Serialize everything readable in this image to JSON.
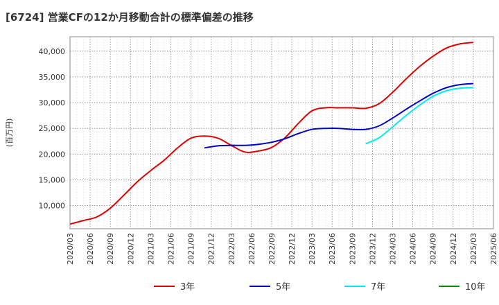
{
  "title": "[6724]  営業CFの12か月移動合計の標準偏差の推移",
  "chart_data": {
    "type": "line",
    "title": "[6724]  営業CFの12か月移動合計の標準偏差の推移",
    "xlabel": "",
    "ylabel": "(百万円)",
    "x_ticks": [
      "2020/03",
      "2020/06",
      "2020/09",
      "2020/12",
      "2021/03",
      "2021/06",
      "2021/09",
      "2021/12",
      "2022/03",
      "2022/06",
      "2022/09",
      "2022/12",
      "2023/03",
      "2023/06",
      "2023/09",
      "2023/12",
      "2024/03",
      "2024/06",
      "2024/09",
      "2024/12",
      "2025/03",
      "2025/06"
    ],
    "y_ticks": [
      10000,
      15000,
      20000,
      25000,
      30000,
      35000,
      40000
    ],
    "y_tick_labels": [
      "10,000",
      "15,000",
      "20,000",
      "25,000",
      "30,000",
      "35,000",
      "40,000"
    ],
    "ylim": [
      5500,
      42800
    ],
    "grid": true,
    "legend_position": "bottom",
    "series": [
      {
        "name": "3年",
        "color": "#dd0000",
        "x": [
          "2020/03",
          "2020/05",
          "2020/07",
          "2020/09",
          "2020/11",
          "2021/01",
          "2021/03",
          "2021/05",
          "2021/07",
          "2021/09",
          "2021/11",
          "2022/01",
          "2022/03",
          "2022/05",
          "2022/07",
          "2022/09",
          "2022/11",
          "2023/01",
          "2023/03",
          "2023/05",
          "2023/07",
          "2023/09",
          "2023/11",
          "2024/01",
          "2024/03",
          "2024/05",
          "2024/07",
          "2024/09",
          "2024/11",
          "2025/01",
          "2025/03"
        ],
        "values": [
          6400,
          7100,
          7800,
          9500,
          12000,
          14600,
          16800,
          18800,
          21200,
          23100,
          23500,
          23100,
          21700,
          20400,
          20600,
          21300,
          23200,
          26000,
          28400,
          29000,
          29000,
          29000,
          28900,
          29800,
          32000,
          34600,
          37000,
          39000,
          40600,
          41400,
          41700
        ]
      },
      {
        "name": "5年",
        "color": "#0000cc",
        "x": [
          "2021/11",
          "2022/01",
          "2022/03",
          "2022/05",
          "2022/07",
          "2022/09",
          "2022/11",
          "2023/01",
          "2023/03",
          "2023/05",
          "2023/07",
          "2023/09",
          "2023/11",
          "2024/01",
          "2024/03",
          "2024/05",
          "2024/07",
          "2024/09",
          "2024/11",
          "2025/01",
          "2025/03"
        ],
        "values": [
          21200,
          21600,
          21700,
          21700,
          21900,
          22300,
          23000,
          24000,
          24800,
          25000,
          25000,
          24800,
          24800,
          25500,
          27000,
          28700,
          30300,
          31800,
          32900,
          33500,
          33700
        ]
      },
      {
        "name": "7年",
        "color": "#00eeee",
        "x": [
          "2023/11",
          "2024/01",
          "2024/03",
          "2024/05",
          "2024/07",
          "2024/09",
          "2024/11",
          "2025/01",
          "2025/03"
        ],
        "values": [
          22000,
          23200,
          25300,
          27500,
          29500,
          31200,
          32300,
          32800,
          32900
        ]
      },
      {
        "name": "10年",
        "color": "#008800",
        "x": [],
        "values": []
      }
    ]
  }
}
